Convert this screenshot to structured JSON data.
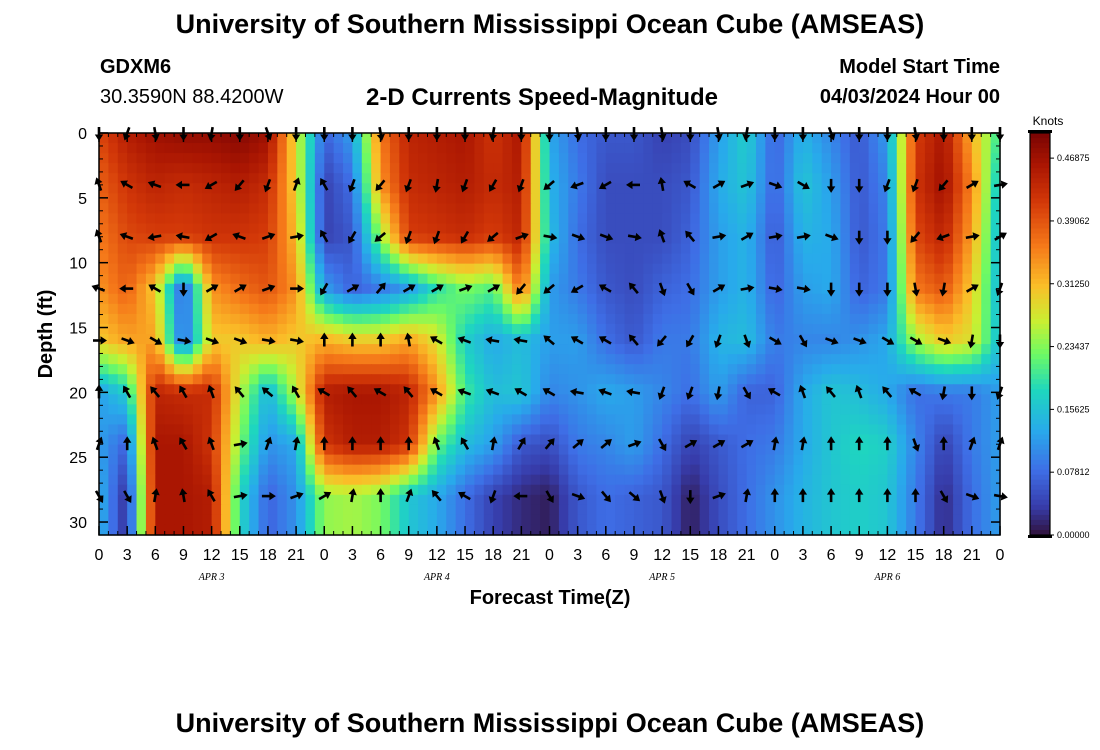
{
  "header": {
    "title": "University of Southern Mississippi Ocean Cube (AMSEAS)",
    "footer_title": "University of Southern Mississippi Ocean Cube (AMSEAS)",
    "station": "GDXM6",
    "coords": "30.3590N  88.4200W",
    "subtitle": "2-D Currents Speed-Magnitude",
    "start_label": "Model Start Time",
    "start_value": "04/03/2024 Hour 00"
  },
  "chart_data": {
    "type": "heatmap",
    "title": "2-D Currents Speed-Magnitude",
    "xlabel": "Forecast Time(Z)",
    "ylabel": "Depth (ft)",
    "xlim": [
      0,
      96
    ],
    "ylim": [
      0,
      31
    ],
    "y_inverted": true,
    "x_ticks": [
      0,
      3,
      6,
      9,
      12,
      15,
      18,
      21,
      24,
      27,
      30,
      33,
      36,
      39,
      42,
      45,
      48,
      51,
      54,
      57,
      60,
      63,
      66,
      69,
      72,
      75,
      78,
      81,
      84,
      87,
      90,
      93,
      96
    ],
    "x_tick_labels": [
      "0",
      "3",
      "6",
      "9",
      "12",
      "15",
      "18",
      "21",
      "0",
      "3",
      "6",
      "9",
      "12",
      "15",
      "18",
      "21",
      "0",
      "3",
      "6",
      "9",
      "12",
      "15",
      "18",
      "21",
      "0",
      "3",
      "6",
      "9",
      "12",
      "15",
      "18",
      "21",
      "0"
    ],
    "y_ticks": [
      0,
      5,
      10,
      15,
      20,
      25,
      30
    ],
    "y_tick_labels": [
      "0",
      "5",
      "10",
      "15",
      "20",
      "25",
      "30"
    ],
    "day_labels": [
      {
        "text": "APR 3",
        "hour": 12
      },
      {
        "text": "APR 4",
        "hour": 36
      },
      {
        "text": "APR 5",
        "hour": 60
      },
      {
        "text": "APR 6",
        "hour": 84
      }
    ],
    "colorbar": {
      "units": "Knots",
      "min": 0.0,
      "max": 0.5,
      "tick_values": [
        0.0,
        0.078125,
        0.15625,
        0.234375,
        0.3125,
        0.390625,
        0.46875
      ],
      "tick_labels": [
        "0.00000",
        "0.07812",
        "0.15625",
        "0.23437",
        "0.31250",
        "0.39062",
        "0.46875"
      ]
    },
    "depth_levels": [
      0,
      4,
      8,
      12,
      16,
      20,
      24,
      28
    ],
    "time_hours": [
      0,
      3,
      6,
      9,
      12,
      15,
      18,
      21,
      24,
      27,
      30,
      33,
      36,
      39,
      42,
      45,
      48,
      51,
      54,
      57,
      60,
      63,
      66,
      69,
      72,
      75,
      78,
      81,
      84,
      87,
      90,
      93,
      96
    ],
    "speed_knots": [
      [
        0.4,
        0.45,
        0.47,
        0.48,
        0.48,
        0.49,
        0.47,
        0.28,
        0.07,
        0.12,
        0.36,
        0.44,
        0.45,
        0.46,
        0.42,
        0.46,
        0.13,
        0.08,
        0.06,
        0.06,
        0.04,
        0.05,
        0.12,
        0.17,
        0.07,
        0.14,
        0.1,
        0.06,
        0.12,
        0.41,
        0.46,
        0.32,
        0.19
      ],
      [
        0.38,
        0.42,
        0.44,
        0.43,
        0.44,
        0.45,
        0.43,
        0.29,
        0.04,
        0.08,
        0.34,
        0.43,
        0.44,
        0.45,
        0.43,
        0.45,
        0.14,
        0.09,
        0.05,
        0.05,
        0.05,
        0.06,
        0.13,
        0.16,
        0.07,
        0.16,
        0.12,
        0.06,
        0.1,
        0.42,
        0.47,
        0.35,
        0.15
      ],
      [
        0.36,
        0.4,
        0.41,
        0.41,
        0.42,
        0.42,
        0.41,
        0.31,
        0.04,
        0.06,
        0.24,
        0.41,
        0.42,
        0.43,
        0.41,
        0.44,
        0.15,
        0.08,
        0.05,
        0.05,
        0.05,
        0.07,
        0.12,
        0.14,
        0.06,
        0.14,
        0.13,
        0.06,
        0.09,
        0.4,
        0.44,
        0.33,
        0.14
      ],
      [
        0.34,
        0.38,
        0.3,
        0.06,
        0.34,
        0.37,
        0.39,
        0.34,
        0.12,
        0.07,
        0.09,
        0.12,
        0.19,
        0.23,
        0.21,
        0.37,
        0.12,
        0.09,
        0.06,
        0.05,
        0.07,
        0.08,
        0.12,
        0.14,
        0.07,
        0.12,
        0.13,
        0.07,
        0.09,
        0.36,
        0.39,
        0.3,
        0.14
      ],
      [
        0.3,
        0.33,
        0.33,
        0.07,
        0.3,
        0.3,
        0.32,
        0.3,
        0.32,
        0.3,
        0.3,
        0.33,
        0.28,
        0.17,
        0.13,
        0.15,
        0.12,
        0.12,
        0.08,
        0.06,
        0.09,
        0.09,
        0.14,
        0.15,
        0.09,
        0.1,
        0.1,
        0.11,
        0.13,
        0.25,
        0.3,
        0.28,
        0.15
      ],
      [
        0.12,
        0.17,
        0.44,
        0.43,
        0.43,
        0.26,
        0.14,
        0.26,
        0.45,
        0.46,
        0.46,
        0.44,
        0.34,
        0.2,
        0.15,
        0.16,
        0.1,
        0.11,
        0.13,
        0.12,
        0.1,
        0.08,
        0.12,
        0.07,
        0.07,
        0.13,
        0.16,
        0.15,
        0.13,
        0.08,
        0.09,
        0.09,
        0.12
      ],
      [
        0.12,
        0.07,
        0.46,
        0.46,
        0.42,
        0.23,
        0.11,
        0.13,
        0.42,
        0.45,
        0.45,
        0.42,
        0.22,
        0.15,
        0.12,
        0.06,
        0.05,
        0.09,
        0.1,
        0.12,
        0.08,
        0.04,
        0.06,
        0.08,
        0.09,
        0.13,
        0.16,
        0.18,
        0.17,
        0.1,
        0.04,
        0.09,
        0.12
      ],
      [
        0.14,
        0.02,
        0.46,
        0.46,
        0.45,
        0.18,
        0.07,
        0.11,
        0.24,
        0.25,
        0.23,
        0.16,
        0.13,
        0.08,
        0.04,
        0.02,
        0.01,
        0.06,
        0.08,
        0.07,
        0.06,
        0.01,
        0.05,
        0.08,
        0.11,
        0.14,
        0.16,
        0.17,
        0.16,
        0.09,
        0.02,
        0.08,
        0.12
      ]
    ],
    "direction_deg": [
      [
        180,
        200,
        170,
        180,
        190,
        180,
        160,
        180,
        180,
        180,
        170,
        180,
        180,
        180,
        190,
        180,
        180,
        170,
        180,
        180,
        170,
        180,
        170,
        190,
        180,
        180,
        160,
        180,
        180,
        170,
        180,
        180,
        180
      ],
      [
        340,
        300,
        290,
        270,
        240,
        220,
        200,
        20,
        330,
        200,
        220,
        200,
        190,
        200,
        210,
        200,
        230,
        250,
        240,
        270,
        350,
        300,
        60,
        70,
        110,
        120,
        180,
        180,
        200,
        200,
        220,
        60,
        80
      ],
      [
        340,
        290,
        260,
        280,
        240,
        290,
        70,
        80,
        330,
        210,
        230,
        200,
        200,
        210,
        230,
        70,
        100,
        110,
        110,
        100,
        340,
        320,
        80,
        60,
        80,
        80,
        110,
        180,
        180,
        220,
        250,
        80,
        60
      ],
      [
        290,
        270,
        300,
        180,
        60,
        60,
        70,
        90,
        210,
        60,
        40,
        60,
        60,
        70,
        60,
        220,
        230,
        240,
        300,
        320,
        160,
        150,
        60,
        80,
        100,
        100,
        180,
        180,
        180,
        170,
        190,
        60,
        200
      ],
      [
        90,
        110,
        120,
        100,
        110,
        110,
        100,
        100,
        0,
        0,
        0,
        350,
        300,
        290,
        280,
        280,
        310,
        300,
        300,
        320,
        220,
        210,
        200,
        160,
        120,
        150,
        110,
        110,
        120,
        120,
        110,
        190,
        180
      ],
      [
        0,
        330,
        320,
        330,
        340,
        320,
        310,
        330,
        300,
        320,
        300,
        320,
        300,
        290,
        290,
        300,
        300,
        280,
        290,
        280,
        200,
        200,
        190,
        150,
        300,
        340,
        320,
        340,
        320,
        300,
        190,
        180,
        200
      ],
      [
        20,
        0,
        340,
        330,
        340,
        80,
        20,
        10,
        0,
        0,
        0,
        0,
        340,
        330,
        10,
        30,
        40,
        50,
        50,
        70,
        150,
        60,
        60,
        60,
        10,
        10,
        0,
        0,
        0,
        160,
        0,
        20,
        20
      ],
      [
        150,
        150,
        10,
        350,
        330,
        80,
        90,
        70,
        60,
        10,
        0,
        20,
        320,
        300,
        200,
        270,
        150,
        110,
        140,
        130,
        160,
        180,
        70,
        10,
        0,
        0,
        0,
        0,
        0,
        0,
        150,
        110,
        100
      ]
    ]
  }
}
